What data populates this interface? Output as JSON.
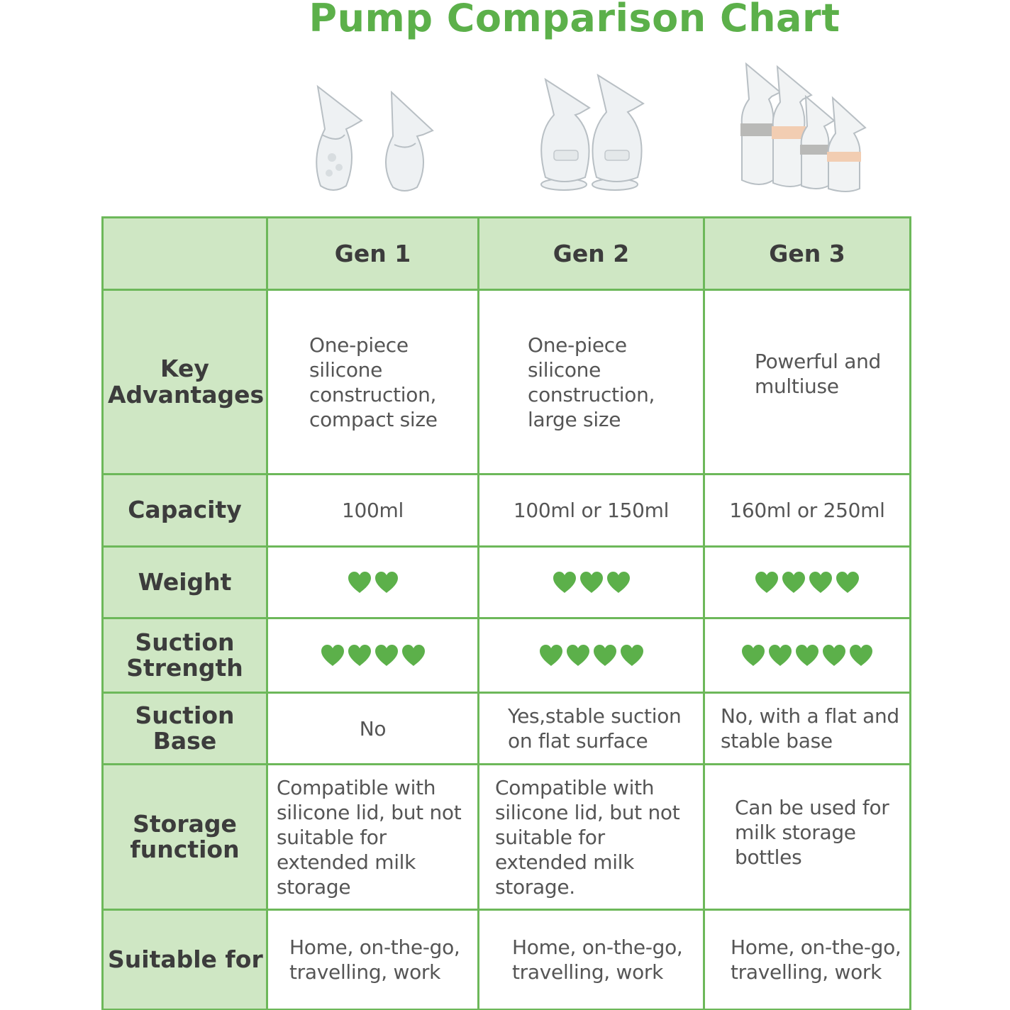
{
  "title": "Pump Comparison Chart",
  "colors": {
    "accent": "#5cb04a",
    "header_bg": "#cfe7c4",
    "border": "#6db85a",
    "heart": "#5cb04a"
  },
  "columns": [
    "",
    "Gen 1",
    "Gen 2",
    "Gen 3"
  ],
  "rows": [
    {
      "label": "Key Advantages",
      "values": [
        "One-piece silicone construction, compact size",
        "One-piece silicone construction, large size",
        "Powerful and multiuse"
      ]
    },
    {
      "label": "Capacity",
      "values": [
        "100ml",
        "100ml or 150ml",
        "160ml or 250ml"
      ]
    },
    {
      "label": "Weight",
      "hearts": [
        2,
        3,
        4
      ]
    },
    {
      "label": "Suction Strength",
      "hearts": [
        4,
        4,
        5
      ]
    },
    {
      "label": "Suction Base",
      "values": [
        "No",
        "Yes,stable suction on flat surface",
        "No, with a flat and stable base"
      ]
    },
    {
      "label": "Storage function",
      "values": [
        "Compatible with silicone lid, but not suitable for extended milk storage",
        "Compatible with silicone lid, but not suitable for extended milk storage.",
        "Can be used for milk storage bottles"
      ]
    },
    {
      "label": "Suitable for",
      "values": [
        "Home, on-the-go, travelling, work",
        "Home, on-the-go, travelling, work",
        "Home, on-the-go, travelling, work"
      ]
    }
  ]
}
